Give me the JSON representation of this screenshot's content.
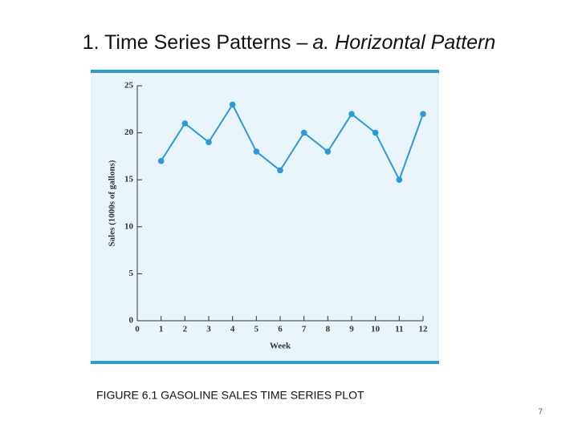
{
  "title": "1. Time Series Patterns –",
  "title_emphasis": "a. Horizontal Pattern",
  "caption": "FIGURE 6.1 GASOLINE SALES TIME SERIES PLOT",
  "page_number": "7",
  "chart_data": {
    "type": "line",
    "x_label": "Week",
    "y_label": "Sales (1000s of gallons)",
    "x": [
      1,
      2,
      3,
      4,
      5,
      6,
      7,
      8,
      9,
      10,
      11,
      12
    ],
    "values": [
      17,
      21,
      19,
      23,
      18,
      16,
      20,
      18,
      22,
      20,
      15,
      22
    ],
    "color": "#2b9bd8",
    "xlim": [
      0,
      12
    ],
    "xticks": [
      0,
      1,
      2,
      3,
      4,
      5,
      6,
      7,
      8,
      9,
      10,
      11,
      12
    ],
    "ylim": [
      0,
      25
    ],
    "yticks": [
      0,
      5,
      10,
      15,
      20,
      25
    ]
  }
}
